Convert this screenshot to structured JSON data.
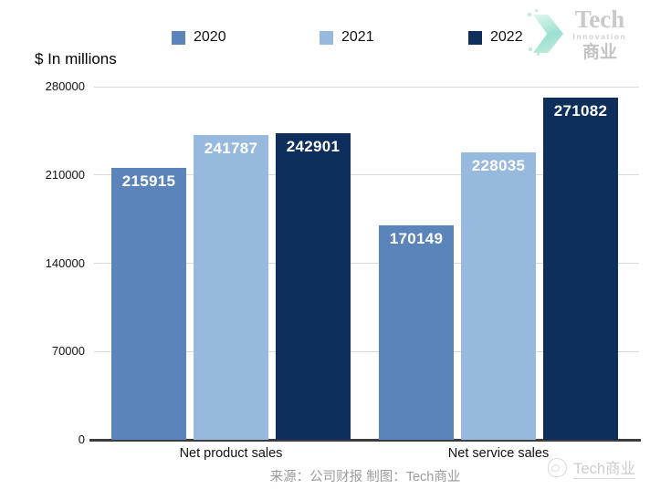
{
  "header": {
    "unit_label": "$ In millions",
    "logo": {
      "line1": "Tech",
      "line2": "Innovation",
      "line3": "商业"
    }
  },
  "legend": [
    {
      "label": "2020",
      "color": "#5b85ba"
    },
    {
      "label": "2021",
      "color": "#97b9dd"
    },
    {
      "label": "2022",
      "color": "#0e2e5c"
    }
  ],
  "chart_data": {
    "type": "bar",
    "categories": [
      "Net product sales",
      "Net service sales"
    ],
    "series": [
      {
        "name": "2020",
        "color": "#5b85ba",
        "values": [
          215915,
          170149
        ]
      },
      {
        "name": "2021",
        "color": "#97b9dd",
        "values": [
          241787,
          228035
        ]
      },
      {
        "name": "2022",
        "color": "#0e2e5c",
        "values": [
          242901,
          271082
        ]
      }
    ],
    "title": "",
    "xlabel": "",
    "ylabel": "$ In millions",
    "ylim": [
      0,
      280000
    ],
    "yticks": [
      0,
      70000,
      140000,
      210000,
      280000
    ],
    "grid": true,
    "legend_position": "top",
    "value_labels": true
  },
  "footer": {
    "source": "来源：公司财报 制图：Tech商业",
    "watermark": "Tech商业"
  }
}
